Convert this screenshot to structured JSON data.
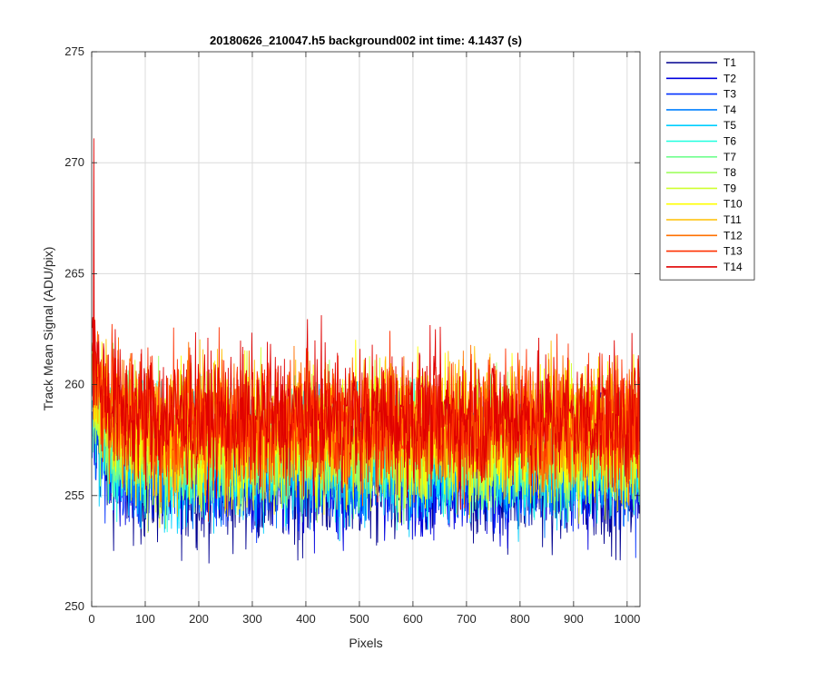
{
  "chart_data": {
    "type": "line",
    "title": "20180626_210047.h5  background002   int time: 4.1437 (s)",
    "xlabel": "Pixels",
    "ylabel": "Track Mean Signal (ADU/pix)",
    "xlim": [
      0,
      1024
    ],
    "ylim": [
      250,
      275
    ],
    "xticks": [
      0,
      100,
      200,
      300,
      400,
      500,
      600,
      700,
      800,
      900,
      1000
    ],
    "xtick_labels": [
      "0",
      "100",
      "200",
      "300",
      "400",
      "500",
      "600",
      "700",
      "800",
      "900",
      "1000"
    ],
    "yticks": [
      250,
      255,
      260,
      265,
      270,
      275
    ],
    "ytick_labels": [
      "250",
      "255",
      "260",
      "265",
      "270",
      "275"
    ],
    "grid": true,
    "legend_position": "outside-right-top",
    "colormap": "jet",
    "series": [
      {
        "name": "T1",
        "color": "#00008f",
        "mean": 255.6,
        "amplitude": 1.9
      },
      {
        "name": "T2",
        "color": "#0000df",
        "mean": 255.9,
        "amplitude": 1.8
      },
      {
        "name": "T3",
        "color": "#0030ff",
        "mean": 256.2,
        "amplitude": 1.8
      },
      {
        "name": "T4",
        "color": "#0080ff",
        "mean": 256.5,
        "amplitude": 1.8
      },
      {
        "name": "T5",
        "color": "#00cfff",
        "mean": 256.6,
        "amplitude": 1.9
      },
      {
        "name": "T6",
        "color": "#20ffdf",
        "mean": 256.9,
        "amplitude": 1.8
      },
      {
        "name": "T7",
        "color": "#70ff8f",
        "mean": 257.1,
        "amplitude": 1.8
      },
      {
        "name": "T8",
        "color": "#9fff60",
        "mean": 257.3,
        "amplitude": 1.9
      },
      {
        "name": "T9",
        "color": "#cfff30",
        "mean": 257.5,
        "amplitude": 1.9
      },
      {
        "name": "T10",
        "color": "#ffff00",
        "mean": 257.8,
        "amplitude": 2.1
      },
      {
        "name": "T11",
        "color": "#ffbf00",
        "mean": 258.0,
        "amplitude": 2.0
      },
      {
        "name": "T12",
        "color": "#ff7000",
        "mean": 258.2,
        "amplitude": 2.0
      },
      {
        "name": "T13",
        "color": "#ff3000",
        "mean": 258.4,
        "amplitude": 2.0
      },
      {
        "name": "T14",
        "color": "#e00000",
        "mean": 258.5,
        "amplitude": 2.1
      }
    ],
    "start_spike": {
      "x": 4,
      "y": 271.1
    }
  }
}
